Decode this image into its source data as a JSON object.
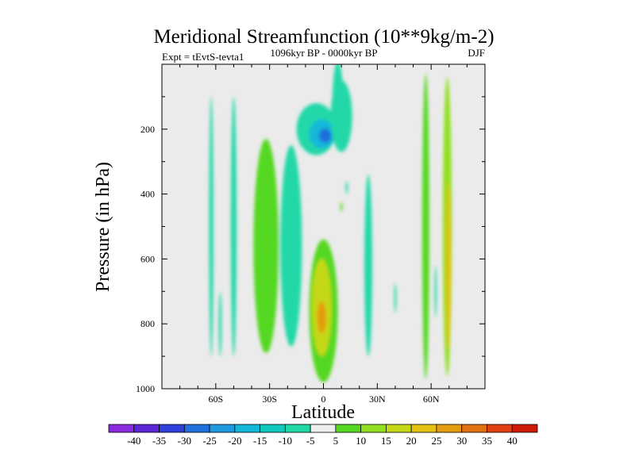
{
  "chart_data": {
    "type": "heatmap",
    "title": "Meridional Streamfunction (10**9kg/m-2)",
    "left_string": "Expt = tEvtS-tevta1",
    "center_string": "1096kyr BP - 0000kyr BP",
    "right_string": "DJF",
    "xlabel": "Latitude",
    "ylabel": "Pressure (in hPa)",
    "xlim": [
      -90,
      90
    ],
    "ylim": [
      1000,
      0
    ],
    "x_ticks": [
      {
        "value": -60,
        "label": "60S"
      },
      {
        "value": -30,
        "label": "30S"
      },
      {
        "value": 0,
        "label": "0"
      },
      {
        "value": 30,
        "label": "30N"
      },
      {
        "value": 60,
        "label": "60N"
      }
    ],
    "y_ticks": [
      {
        "value": 200,
        "label": "200"
      },
      {
        "value": 400,
        "label": "400"
      },
      {
        "value": 600,
        "label": "600"
      },
      {
        "value": 800,
        "label": "800"
      },
      {
        "value": 1000,
        "label": "1000"
      }
    ],
    "colorbar": {
      "levels": [
        "-40",
        "-35",
        "-30",
        "-25",
        "-20",
        "-15",
        "-10",
        "-5",
        "5",
        "10",
        "15",
        "20",
        "25",
        "30",
        "35",
        "40"
      ],
      "colors": [
        "#8a2be2",
        "#5a26d6",
        "#2e3fdc",
        "#1f70dc",
        "#1e9ae0",
        "#12b8d8",
        "#10c8bc",
        "#20d8a8",
        "#eeeeee",
        "#55d820",
        "#90e020",
        "#c4d818",
        "#e4c010",
        "#e49c10",
        "#e07010",
        "#e04010",
        "#d01a08"
      ]
    },
    "field_blobs": [
      {
        "lat": -62.5,
        "p": 500,
        "dlat": 1.2,
        "dp": 400,
        "value": -7
      },
      {
        "lat": -57.5,
        "p": 800,
        "dlat": 0.8,
        "dp": 100,
        "value": -6
      },
      {
        "lat": -50,
        "p": 500,
        "dlat": 1.6,
        "dp": 400,
        "value": -7
      },
      {
        "lat": -32,
        "p": 560,
        "dlat": 7,
        "dp": 330,
        "value": 7
      },
      {
        "lat": -18,
        "p": 560,
        "dlat": 6,
        "dp": 310,
        "value": -7
      },
      {
        "lat": -4,
        "p": 200,
        "dlat": 11,
        "dp": 80,
        "value": -7
      },
      {
        "lat": -1,
        "p": 215,
        "dlat": 7,
        "dp": 45,
        "value": -17
      },
      {
        "lat": 1,
        "p": 220,
        "dlat": 3.5,
        "dp": 22,
        "value": -26
      },
      {
        "lat": 10,
        "p": 160,
        "dlat": 6,
        "dp": 110,
        "value": -7
      },
      {
        "lat": 8,
        "p": 120,
        "dlat": 3,
        "dp": 130,
        "value": -7
      },
      {
        "lat": 13,
        "p": 380,
        "dlat": 0.6,
        "dp": 20,
        "value": -6
      },
      {
        "lat": 10,
        "p": 440,
        "dlat": 0.6,
        "dp": 15,
        "value": 6
      },
      {
        "lat": 0,
        "p": 760,
        "dlat": 8,
        "dp": 220,
        "value": 8
      },
      {
        "lat": -1,
        "p": 750,
        "dlat": 5.5,
        "dp": 150,
        "value": 18
      },
      {
        "lat": -1,
        "p": 780,
        "dlat": 2.5,
        "dp": 50,
        "value": 26
      },
      {
        "lat": 25,
        "p": 620,
        "dlat": 2.2,
        "dp": 280,
        "value": -7
      },
      {
        "lat": 40,
        "p": 720,
        "dlat": 0.6,
        "dp": 45,
        "value": -6
      },
      {
        "lat": 57,
        "p": 500,
        "dlat": 2,
        "dp": 470,
        "value": 7
      },
      {
        "lat": 62.5,
        "p": 700,
        "dlat": 0.6,
        "dp": 80,
        "value": -6
      },
      {
        "lat": 69,
        "p": 500,
        "dlat": 2.5,
        "dp": 460,
        "value": 11
      },
      {
        "lat": 69.5,
        "p": 620,
        "dlat": 1.3,
        "dp": 260,
        "value": 20
      }
    ]
  }
}
